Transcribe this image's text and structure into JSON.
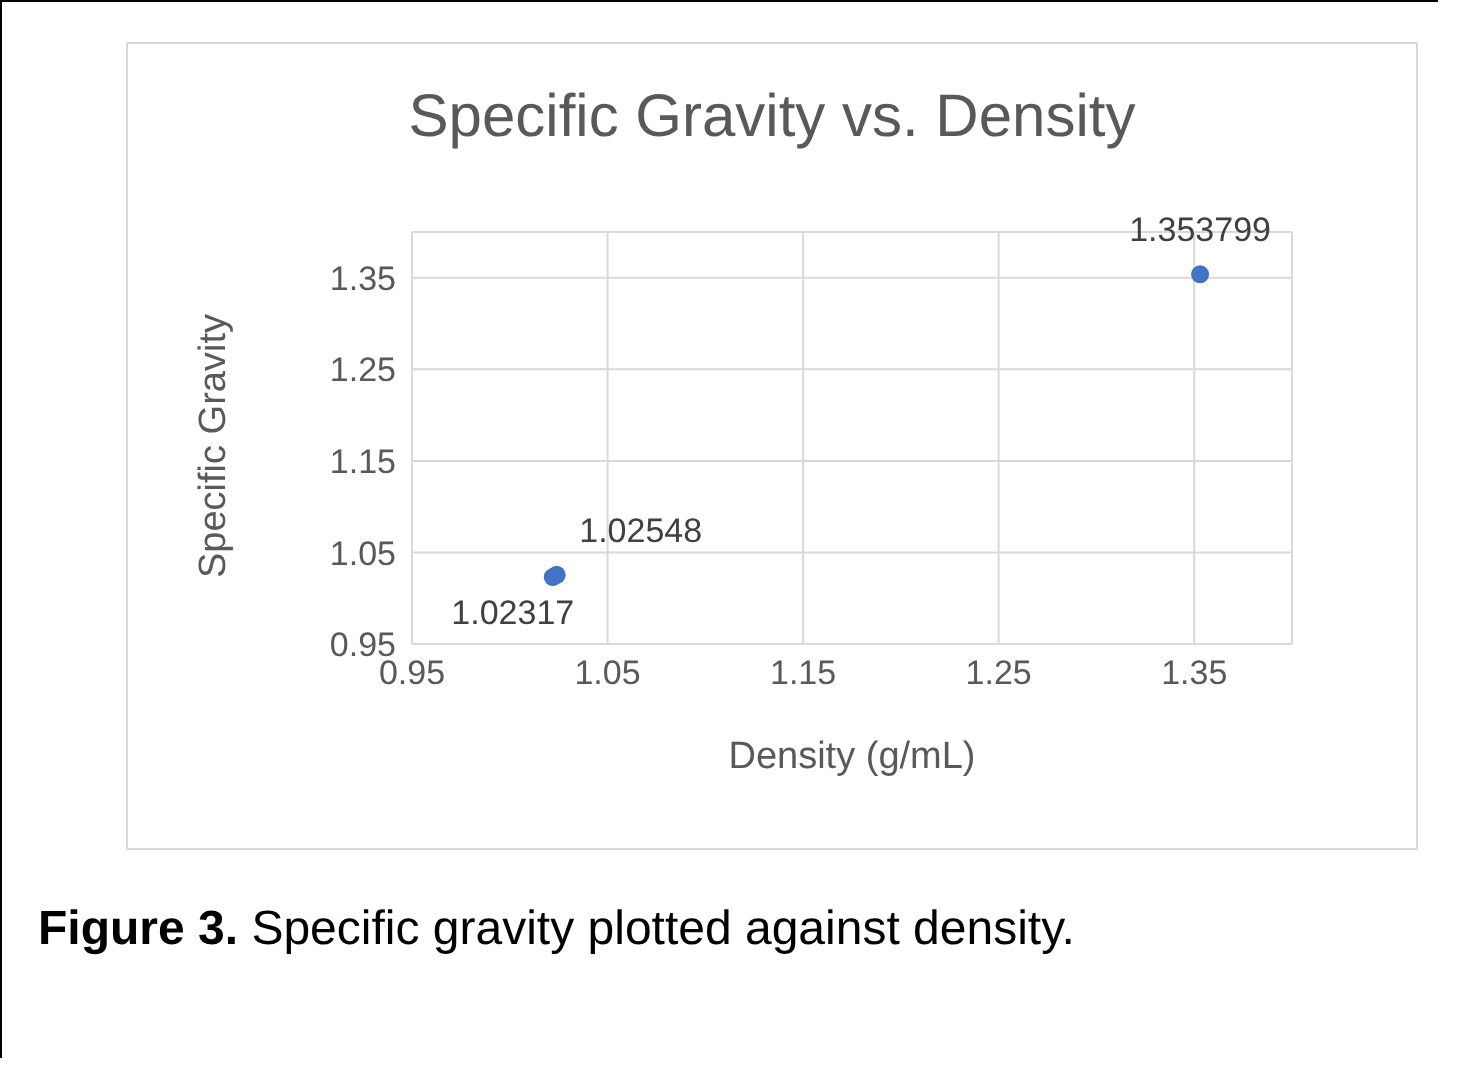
{
  "chart_data": {
    "type": "scatter",
    "title": "Specific Gravity vs. Density",
    "xlabel": "Density (g/mL)",
    "ylabel": "Specific Gravity",
    "annotations": [
      "Figure 3. Specific gravity plotted against density."
    ],
    "series": [
      {
        "color": "#4472c4",
        "x": [
          1.024,
          1.022,
          1.353
        ],
        "values": [
          1.02548,
          1.02317,
          1.353799
        ],
        "value_labels": [
          "1.02548",
          "1.02317",
          "1.353799"
        ]
      }
    ],
    "xlim": [
      0.95,
      1.4
    ],
    "xticks": [
      0.95,
      1.05,
      1.15,
      1.25,
      1.35
    ],
    "ylim": [
      0.95,
      1.4
    ],
    "yticks": [
      0.95,
      1.05,
      1.15,
      1.25,
      1.35
    ],
    "grid": true,
    "marker": "circle"
  }
}
